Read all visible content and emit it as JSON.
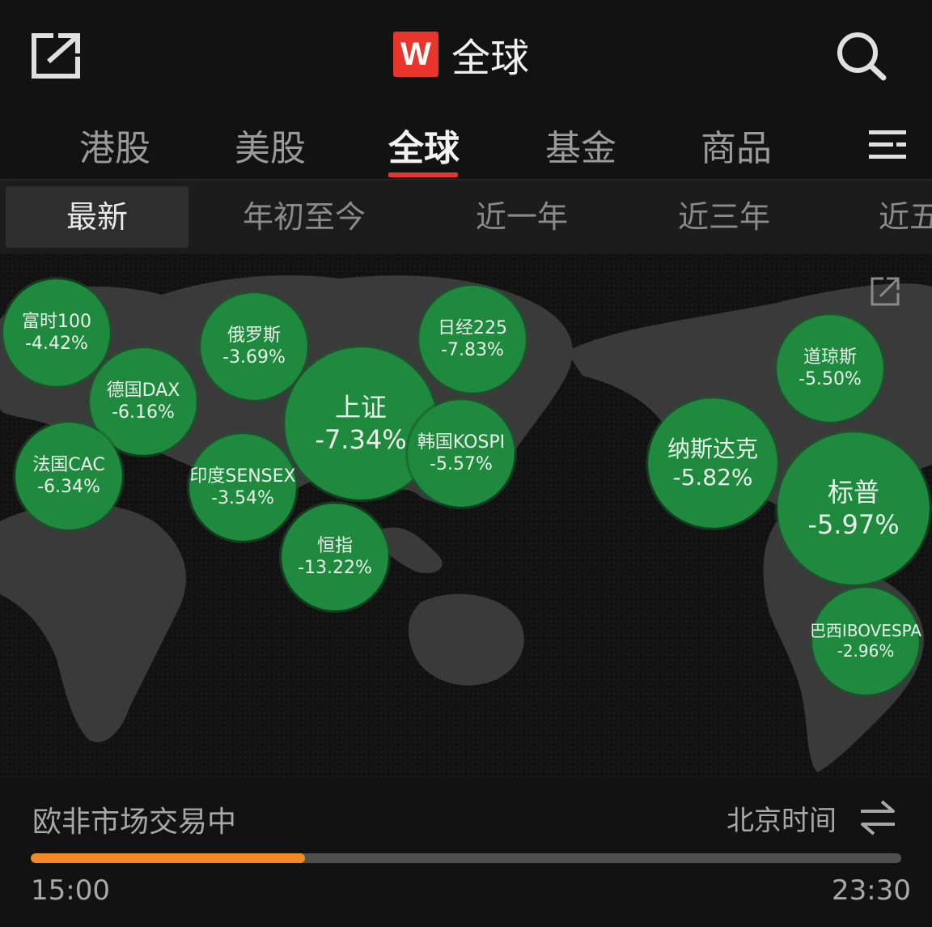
{
  "header": {
    "logo_letter": "W",
    "title": "全球"
  },
  "tabs": [
    {
      "label": "港股"
    },
    {
      "label": "美股"
    },
    {
      "label": "全球",
      "active": true
    },
    {
      "label": "基金"
    },
    {
      "label": "商品"
    }
  ],
  "subtabs": [
    {
      "label": "最新",
      "active": true
    },
    {
      "label": "年初至今"
    },
    {
      "label": "近一年"
    },
    {
      "label": "近三年"
    },
    {
      "label": "近五年"
    }
  ],
  "markets": [
    {
      "id": "ftse",
      "name": "富时100",
      "change": "-4.42%"
    },
    {
      "id": "dax",
      "name": "德国DAX",
      "change": "-6.16%"
    },
    {
      "id": "cac",
      "name": "法国CAC",
      "change": "-6.34%"
    },
    {
      "id": "russia",
      "name": "俄罗斯",
      "change": "-3.69%"
    },
    {
      "id": "sensex",
      "name": "印度SENSEX",
      "change": "-3.54%"
    },
    {
      "id": "shanghai",
      "name": "上证",
      "change": "-7.34%"
    },
    {
      "id": "hsi",
      "name": "恒指",
      "change": "-13.22%"
    },
    {
      "id": "nikkei",
      "name": "日经225",
      "change": "-7.83%"
    },
    {
      "id": "kospi",
      "name": "韩国KOSPI",
      "change": "-5.57%"
    },
    {
      "id": "nasdaq",
      "name": "纳斯达克",
      "change": "-5.82%"
    },
    {
      "id": "dow",
      "name": "道琼斯",
      "change": "-5.50%"
    },
    {
      "id": "sp500",
      "name": "标普",
      "change": "-5.97%"
    },
    {
      "id": "ibovespa",
      "name": "巴西IBOVESPA",
      "change": "-2.96%"
    }
  ],
  "footer": {
    "status": "欧非市场交易中",
    "timezone": "北京时间",
    "progress": 0.315,
    "start_time": "15:00",
    "end_time": "23:30"
  },
  "colors": {
    "accent": "#e8362d",
    "progress": "#f08a24",
    "bubble": "#1f8a3e",
    "bubble_ring": "#17692f"
  },
  "icons": {
    "share": "share-icon",
    "search": "search-icon",
    "menu": "menu-icon",
    "swap": "swap-icon"
  }
}
